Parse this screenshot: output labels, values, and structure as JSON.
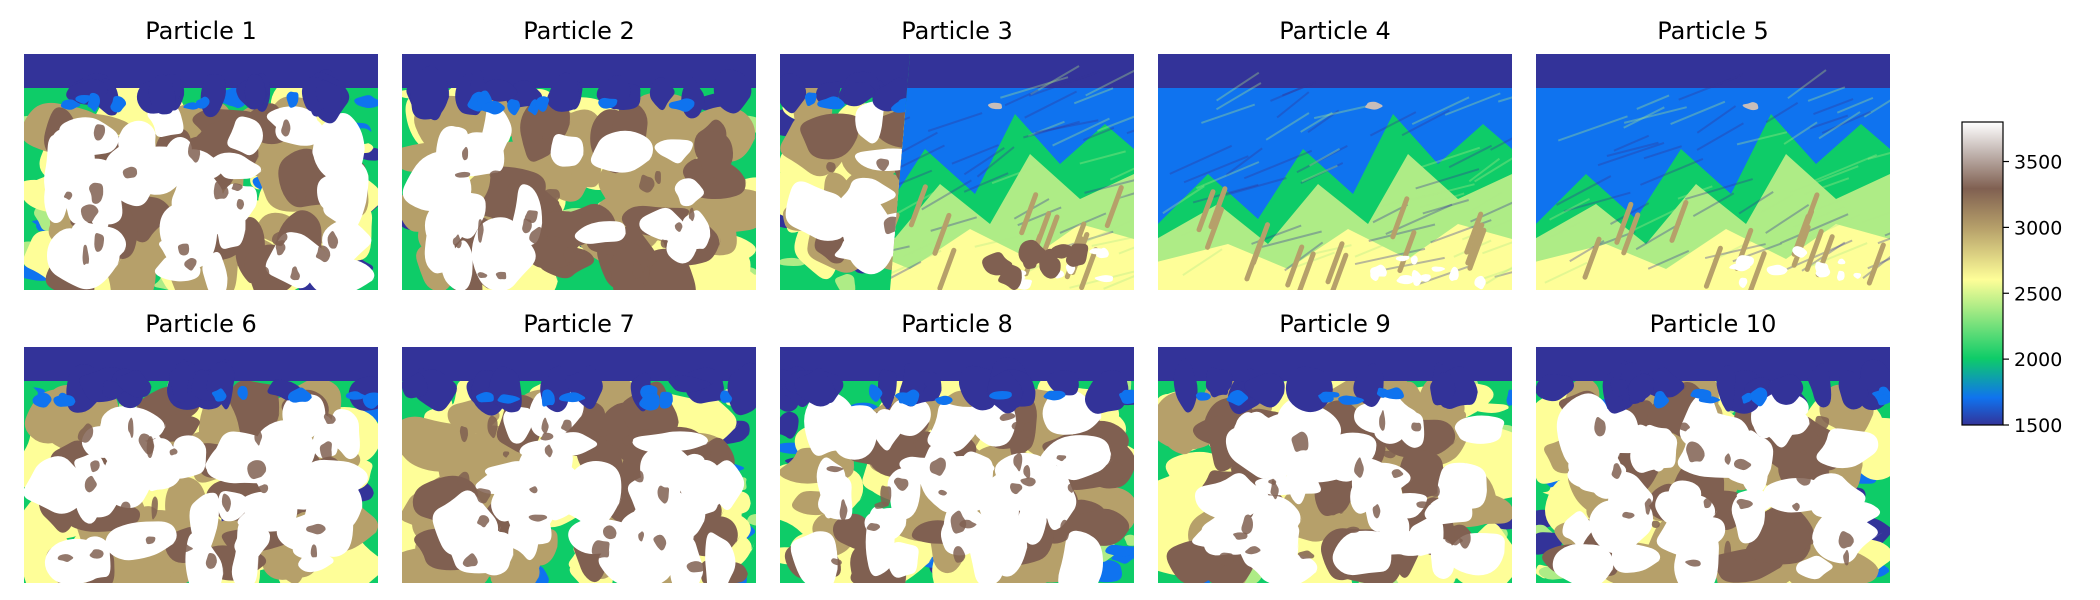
{
  "chart_data": {
    "type": "heatmap",
    "grid": false,
    "layout": "2 rows x 5 columns",
    "colormap": "terrain",
    "panels": [
      {
        "title": "Particle 1",
        "pattern": "high-velocity (white) blobs fill most of the model below a thin low-velocity layer"
      },
      {
        "title": "Particle 2",
        "pattern": "mottled high-velocity columns with brown/yellow streaks"
      },
      {
        "title": "Particle 3",
        "pattern": "high-velocity blobs on the left, green mid-velocity wedges on the right"
      },
      {
        "title": "Particle 4",
        "pattern": "layered green/yellow dipping structure with zig-zag interfaces"
      },
      {
        "title": "Particle 5",
        "pattern": "layered green/yellow dipping structure with zig-zag interfaces"
      },
      {
        "title": "Particle 6",
        "pattern": "high-velocity body with brown edges below low-velocity top"
      },
      {
        "title": "Particle 7",
        "pattern": "high-velocity body with brown edges below low-velocity top"
      },
      {
        "title": "Particle 8",
        "pattern": "high-velocity columns rising toward the surface"
      },
      {
        "title": "Particle 9",
        "pattern": "high-velocity body with brown and yellow inclusions"
      },
      {
        "title": "Particle 10",
        "pattern": "high-velocity body with brown edges below low-velocity top"
      }
    ],
    "colorbar": {
      "range": [
        1500,
        3800
      ],
      "ticks": [
        1500,
        2000,
        2500,
        3000,
        3500
      ],
      "tick_labels": [
        "1500",
        "2000",
        "2500",
        "3000",
        "3500"
      ],
      "label": ""
    },
    "colors": {
      "c1500": "#333399",
      "c1700": "#0f73ef",
      "c2000": "#0ecc68",
      "c2400": "#aeec86",
      "c2600": "#fefe98",
      "c3000": "#b6a06a",
      "c3300": "#806051",
      "c3600": "#c8bdb9",
      "c3800": "#ffffff"
    }
  }
}
